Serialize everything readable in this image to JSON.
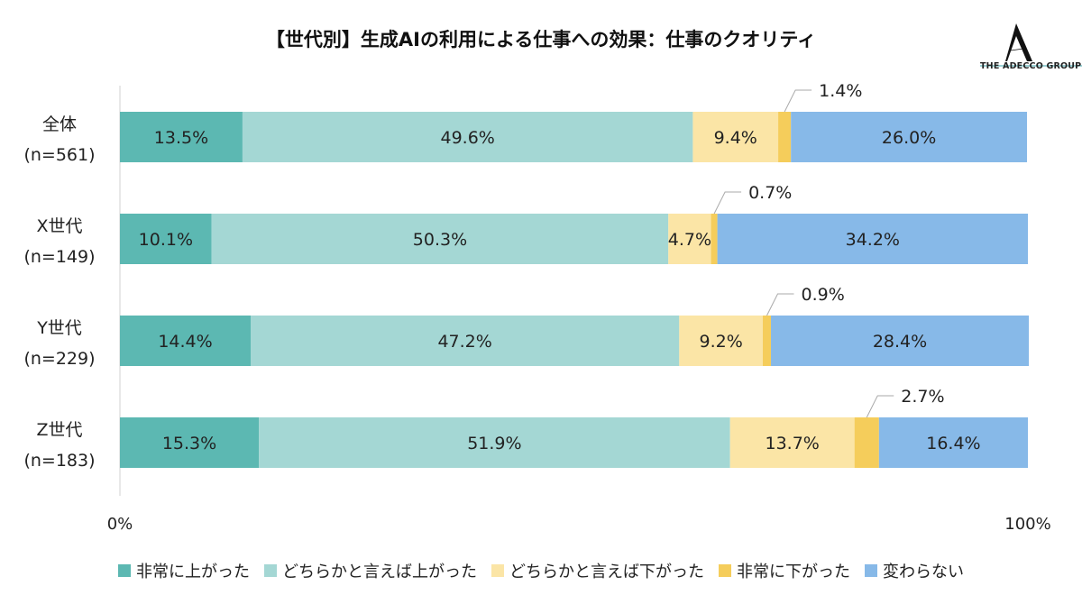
{
  "title": "【世代別】生成AIの利用による仕事への効果：仕事のクオリティ",
  "logo": {
    "text": "THE ADECCO GROUP"
  },
  "chart_data": {
    "type": "bar",
    "orientation": "horizontal",
    "stacked": true,
    "title": "【世代別】生成AIの利用による仕事への効果：仕事のクオリティ",
    "categories": [
      {
        "label": "全体",
        "n": "(n=561)"
      },
      {
        "label": "X世代",
        "n": "(n=149)"
      },
      {
        "label": "Y世代",
        "n": "(n=229)"
      },
      {
        "label": "Z世代",
        "n": "(n=183)"
      }
    ],
    "series": [
      {
        "name": "非常に上がった",
        "color": "#5cb8b2",
        "values": [
          13.5,
          10.1,
          14.4,
          15.3
        ],
        "labels": [
          "13.5%",
          "10.1%",
          "14.4%",
          "15.3%"
        ]
      },
      {
        "name": "どちらかと言えば上がった",
        "color": "#a4d7d4",
        "values": [
          49.6,
          50.3,
          47.2,
          51.9
        ],
        "labels": [
          "49.6%",
          "50.3%",
          "47.2%",
          "51.9%"
        ]
      },
      {
        "name": "どちらかと言えば下がった",
        "color": "#fbe5a6",
        "values": [
          9.4,
          4.7,
          9.2,
          13.7
        ],
        "labels": [
          "9.4%",
          "4.7%",
          "9.2%",
          "13.7%"
        ]
      },
      {
        "name": "非常に下がった",
        "color": "#f5cd5b",
        "values": [
          1.4,
          0.7,
          0.9,
          2.7
        ],
        "labels": [
          "1.4%",
          "0.7%",
          "0.9%",
          "2.7%"
        ]
      },
      {
        "name": "変わらない",
        "color": "#87b9e8",
        "values": [
          26.0,
          34.2,
          28.4,
          16.4
        ],
        "labels": [
          "26.0%",
          "34.2%",
          "28.4%",
          "16.4%"
        ]
      }
    ],
    "xlim": [
      0,
      100
    ],
    "xticks": [
      "0%",
      "100%"
    ],
    "grid": false,
    "legend": "bottom"
  }
}
